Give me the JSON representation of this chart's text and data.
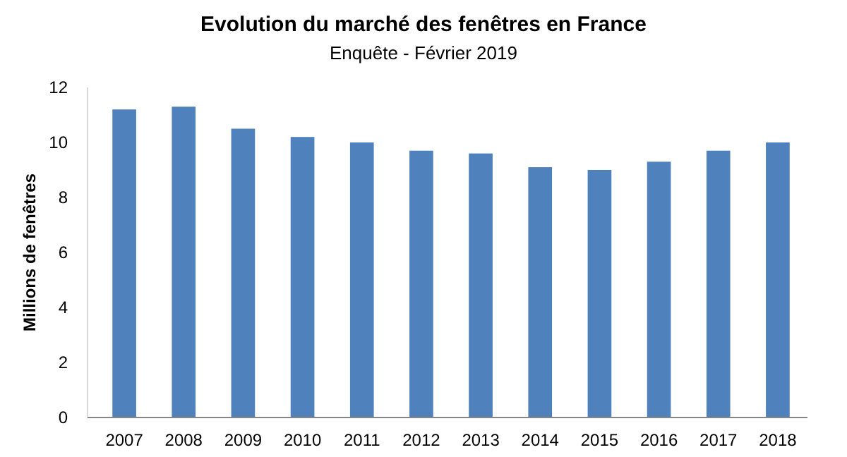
{
  "chart_data": {
    "type": "bar",
    "title": "Evolution du marché des fenêtres en France",
    "subtitle": "Enquête - Février 2019",
    "ylabel": "Millions de fenêtres",
    "categories": [
      "2007",
      "2008",
      "2009",
      "2010",
      "2011",
      "2012",
      "2013",
      "2014",
      "2015",
      "2016",
      "2017",
      "2018"
    ],
    "values": [
      11.2,
      11.3,
      10.5,
      10.2,
      10.0,
      9.7,
      9.6,
      9.1,
      9.0,
      9.3,
      9.7,
      10.0
    ],
    "color": "#4f81bd",
    "ylim": [
      0,
      12
    ],
    "yticks": [
      0,
      2,
      4,
      6,
      8,
      10,
      12
    ],
    "grid": false
  }
}
